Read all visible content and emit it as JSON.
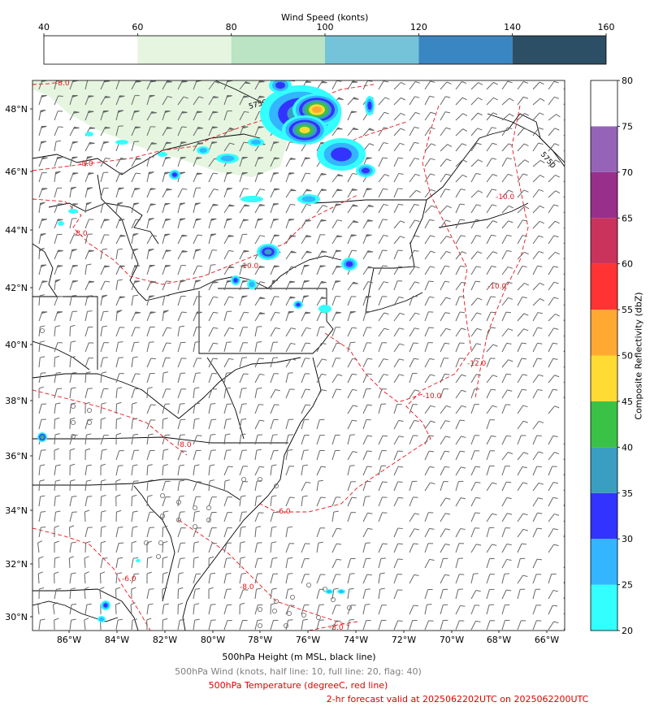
{
  "wind_colorbar": {
    "title": "Wind Speed (konts)",
    "ticks": [
      "40",
      "60",
      "80",
      "100",
      "120",
      "140",
      "160"
    ],
    "colors": [
      "#ffffff",
      "#e5f5e0",
      "#bae4c4",
      "#74c3d8",
      "#3a86c2",
      "#2d4f66"
    ]
  },
  "refl_colorbar": {
    "label": "Composite Reflectivity (dbZ)",
    "ticks": [
      "20",
      "25",
      "30",
      "35",
      "40",
      "45",
      "50",
      "55",
      "60",
      "65",
      "70",
      "75",
      "80"
    ],
    "colors": [
      "#33ffff",
      "#33b5ff",
      "#3333ff",
      "#3a9dc2",
      "#39c245",
      "#ffdb33",
      "#ffa933",
      "#ff3333",
      "#c9335c",
      "#982f8a",
      "#9564b8",
      "#ffffff"
    ]
  },
  "map": {
    "lat_labels": [
      "48°N",
      "46°N",
      "44°N",
      "42°N",
      "40°N",
      "38°N",
      "36°N",
      "34°N",
      "32°N",
      "30°N"
    ],
    "lon_labels": [
      "86°W",
      "84°W",
      "82°W",
      "80°W",
      "78°W",
      "76°W",
      "74°W",
      "72°W",
      "70°W",
      "68°W",
      "66°W"
    ],
    "height_contour_label": "5750",
    "temp_contour_labels": [
      "-8.0",
      "-8.0",
      "-8.0",
      "-10.0",
      "-10.0",
      "-10.0",
      "-12.0",
      "-10.0",
      "-8.0",
      "-6.0",
      "-8.0",
      "-6.0",
      "-8.0"
    ]
  },
  "footer": {
    "line1": "500hPa Height (m MSL, black line)",
    "line2": "500hPa Wind (knots, half line: 10, full line: 20, flag: 40)",
    "line3": "500hPa Temperature (degreeC, red line)",
    "line4": "2-hr forecast valid at 2025062202UTC on 2025062200UTC"
  },
  "colors": {
    "temp_line": "#e8141a",
    "barbs": "#666666",
    "coast": "#000000",
    "line2": "#808080",
    "line3": "#e00000"
  }
}
